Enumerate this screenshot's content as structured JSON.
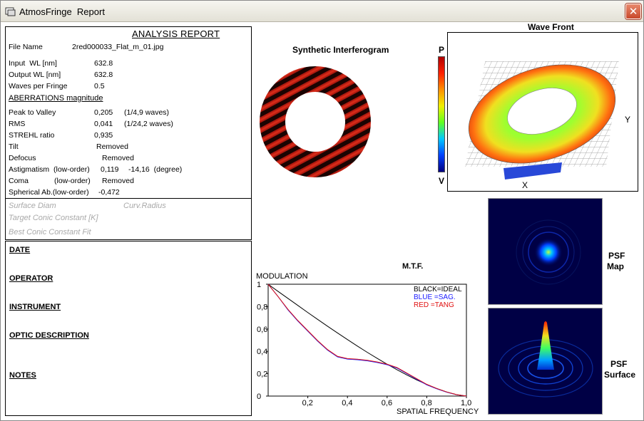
{
  "window": {
    "title": "AtmosFringe  Report"
  },
  "report": {
    "title": "ANALYSIS  REPORT",
    "file_name_label": "File Name",
    "file_name": "2red000033_Flat_m_01.jpg",
    "input_wl_label": "Input  WL [nm]",
    "input_wl": "632.8",
    "output_wl_label": "Output WL [nm]",
    "output_wl": "632.8",
    "waves_per_fringe_label": "Waves per Fringe",
    "waves_per_fringe": "0.5",
    "aberrations_heading": "ABERRATIONS magnitude",
    "ptv_label": "Peak to Valley",
    "ptv_value": "0,205",
    "ptv_waves": "(1/4,9 waves)",
    "rms_label": "RMS",
    "rms_value": "0,041",
    "rms_waves": "(1/24,2 waves)",
    "strehl_label": "STREHL ratio",
    "strehl_value": "0,935",
    "tilt_label": "Tilt",
    "tilt_value": "Removed",
    "defocus_label": "Defocus",
    "defocus_value": "Removed",
    "astig_label": "Astigmatism  (low-order)",
    "astig_value": "0,119",
    "astig_angle": "-14,16  (degree)",
    "coma_label": "Coma",
    "coma_order": "(low-order)",
    "coma_value": "Removed",
    "spherical_label": "Spherical Ab.(low-order)",
    "spherical_value": "-0,472",
    "surface_diam_label": "Surface Diam",
    "curv_radius_label": "Curv.Radius",
    "target_conic_label": "Target Conic Constant [K]",
    "best_conic_label": "Best Conic Constant Fit"
  },
  "info": {
    "date": "DATE",
    "operator": "OPERATOR",
    "instrument": "INSTRUMENT",
    "optic_description": "OPTIC DESCRIPTION",
    "notes": "NOTES"
  },
  "interferogram": {
    "title": "Synthetic Interferogram",
    "fringe_color": "#b01a10"
  },
  "colorbar": {
    "top_label": "P",
    "bottom_label": "V"
  },
  "wavefront": {
    "title": "Wave Front",
    "axis_x": "X",
    "axis_y": "Y"
  },
  "psf": {
    "map_label_1": "PSF",
    "map_label_2": "Map",
    "surface_label_1": "PSF",
    "surface_label_2": "Surface"
  },
  "mtf": {
    "title": "M.T.F.",
    "legend_black": "BLACK=IDEAL",
    "legend_blue": "BLUE  =SAG.",
    "legend_red": "RED    =TANG"
  },
  "chart_data": {
    "type": "line",
    "title": "M.T.F.",
    "xlabel": "SPATIAL FREQUENCY",
    "ylabel": "MODULATION",
    "xlim": [
      0,
      1.0
    ],
    "ylim": [
      0,
      1
    ],
    "x_ticks": [
      "0,2",
      "0,4",
      "0,6",
      "0,8",
      "1,0"
    ],
    "y_ticks": [
      "0",
      "0,2",
      "0,4",
      "0,6",
      "0,8",
      "1"
    ],
    "x": [
      0,
      0.05,
      0.1,
      0.15,
      0.2,
      0.25,
      0.3,
      0.35,
      0.4,
      0.45,
      0.5,
      0.55,
      0.6,
      0.65,
      0.7,
      0.75,
      0.8,
      0.85,
      0.9,
      0.95,
      1.0
    ],
    "series": [
      {
        "name": "BLACK=IDEAL",
        "color": "#000000",
        "values": [
          1.0,
          0.936,
          0.873,
          0.81,
          0.747,
          0.685,
          0.624,
          0.564,
          0.505,
          0.447,
          0.391,
          0.337,
          0.285,
          0.235,
          0.188,
          0.144,
          0.104,
          0.068,
          0.037,
          0.013,
          0.0
        ]
      },
      {
        "name": "BLUE  =SAG.",
        "color": "#1a1aff",
        "values": [
          1.0,
          0.89,
          0.77,
          0.67,
          0.58,
          0.49,
          0.41,
          0.35,
          0.33,
          0.325,
          0.315,
          0.3,
          0.28,
          0.25,
          0.2,
          0.15,
          0.1,
          0.065,
          0.035,
          0.012,
          0.0
        ]
      },
      {
        "name": "RED    =TANG",
        "color": "#e01010",
        "values": [
          1.0,
          0.89,
          0.775,
          0.675,
          0.585,
          0.495,
          0.415,
          0.355,
          0.335,
          0.33,
          0.32,
          0.305,
          0.285,
          0.255,
          0.205,
          0.155,
          0.105,
          0.068,
          0.037,
          0.013,
          0.0
        ]
      }
    ],
    "legend": "top-right",
    "grid": false
  }
}
